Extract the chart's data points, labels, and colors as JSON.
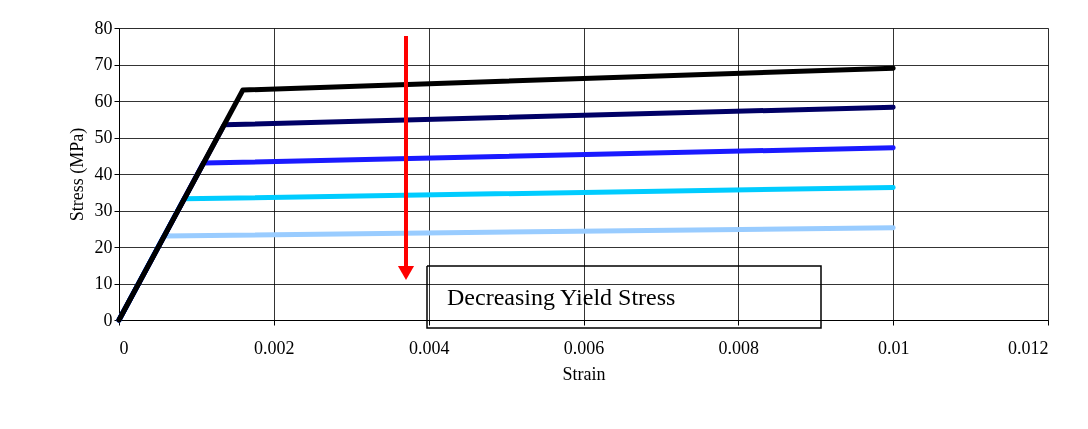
{
  "chart_data": {
    "type": "line",
    "xlabel": "Strain",
    "ylabel": "Stress (MPa)",
    "xlim": [
      0,
      0.012
    ],
    "xticks": [
      0,
      0.002,
      0.004,
      0.006,
      0.008,
      0.01,
      0.012
    ],
    "ylim": [
      0,
      80
    ],
    "yticks": [
      0,
      10,
      20,
      30,
      40,
      50,
      60,
      70,
      80
    ],
    "grid": true,
    "legend": false,
    "marker": "none",
    "line_style": "solid",
    "series": [
      {
        "color": "#99ccff",
        "x": [
          0,
          0.00058,
          0.01
        ],
        "values": [
          0,
          23,
          25.3
        ]
      },
      {
        "color": "#00ccff",
        "x": [
          0,
          0.00084,
          0.01
        ],
        "values": [
          0,
          33.2,
          36.3
        ]
      },
      {
        "color": "#1a1aff",
        "x": [
          0,
          0.00109,
          0.01
        ],
        "values": [
          0,
          43,
          47.2
        ]
      },
      {
        "color": "#000066",
        "x": [
          0,
          0.00136,
          0.01
        ],
        "values": [
          0,
          53.5,
          58.3
        ]
      },
      {
        "color": "#000000",
        "x": [
          0,
          0.0016,
          0.01
        ],
        "values": [
          0,
          63,
          69
        ]
      }
    ],
    "annotations": [
      "Decreasing Yield Stress"
    ]
  }
}
